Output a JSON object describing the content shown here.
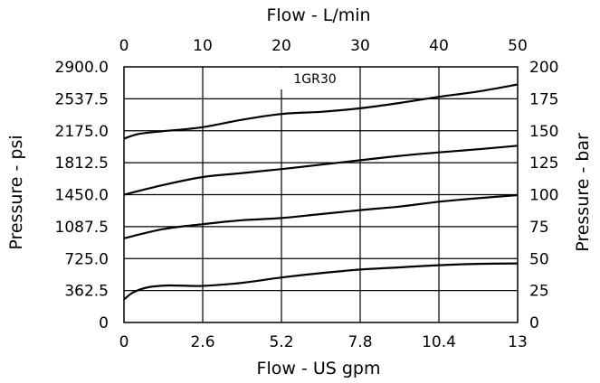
{
  "chart_data": {
    "type": "line",
    "title": "",
    "annotation": "1GR30",
    "x_bottom": {
      "label": "Flow - US gpm",
      "ticks": [
        "0",
        "2.6",
        "5.2",
        "7.8",
        "10.4",
        "13"
      ],
      "range": [
        0,
        13
      ]
    },
    "x_top": {
      "label": "Flow - L/min",
      "ticks": [
        "0",
        "10",
        "20",
        "30",
        "40",
        "50"
      ],
      "range": [
        0,
        50
      ]
    },
    "y_left": {
      "label": "Pressure - psi",
      "ticks": [
        "0",
        "362.5",
        "725.0",
        "1087.5",
        "1450.0",
        "1812.5",
        "2175.0",
        "2537.5",
        "2900.0"
      ],
      "range": [
        0,
        2900
      ]
    },
    "y_right": {
      "label": "Pressure - bar",
      "ticks": [
        "0",
        "25",
        "50",
        "75",
        "100",
        "125",
        "150",
        "175",
        "200"
      ],
      "range": [
        0,
        200
      ]
    },
    "grid": true,
    "series": [
      {
        "x": [
          0,
          0.5,
          1.3,
          2.6,
          3.9,
          5.2,
          6.5,
          7.8,
          9.1,
          10.4,
          11.7,
          13
        ],
        "y": [
          2085,
          2140,
          2170,
          2215,
          2300,
          2365,
          2390,
          2430,
          2490,
          2560,
          2620,
          2700
        ]
      },
      {
        "x": [
          0,
          1.3,
          2.6,
          3.9,
          5.2,
          6.5,
          7.8,
          9.1,
          10.4,
          11.7,
          13
        ],
        "y": [
          1450,
          1560,
          1650,
          1695,
          1740,
          1790,
          1840,
          1890,
          1930,
          1965,
          2005
        ]
      },
      {
        "x": [
          0,
          1.3,
          2.6,
          3.9,
          5.2,
          6.5,
          7.8,
          9.1,
          10.4,
          11.7,
          13
        ],
        "y": [
          955,
          1060,
          1115,
          1160,
          1185,
          1230,
          1275,
          1315,
          1370,
          1410,
          1445
        ]
      },
      {
        "x": [
          0,
          0.3,
          0.8,
          1.5,
          2.6,
          3.9,
          5.2,
          6.5,
          7.8,
          9.1,
          10.4,
          11.7,
          13
        ],
        "y": [
          260,
          340,
          400,
          420,
          415,
          450,
          510,
          560,
          600,
          625,
          650,
          665,
          670
        ]
      }
    ]
  }
}
